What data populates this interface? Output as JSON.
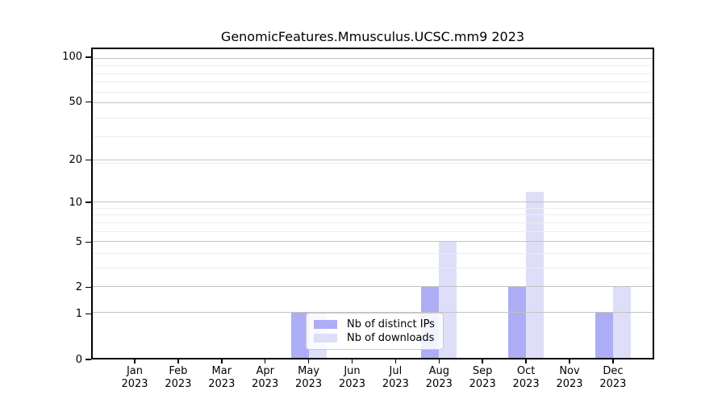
{
  "chart_data": {
    "type": "bar",
    "title": "GenomicFeatures.Mmusculus.UCSC.mm9 2023",
    "categories": [
      "Jan",
      "Feb",
      "Mar",
      "Apr",
      "May",
      "Jun",
      "Jul",
      "Aug",
      "Sep",
      "Oct",
      "Nov",
      "Dec"
    ],
    "year_label": "2023",
    "series": [
      {
        "name": "Nb of distinct IPs",
        "color": "#adadf5",
        "values": [
          0,
          0,
          0,
          0,
          1,
          0,
          0,
          2,
          0,
          2,
          0,
          1
        ]
      },
      {
        "name": "Nb of downloads",
        "color": "#dedef8",
        "values": [
          0,
          0,
          0,
          0,
          1,
          0,
          0,
          5,
          0,
          12,
          0,
          2
        ]
      }
    ],
    "xlabel": "",
    "ylabel": "",
    "y_axis": {
      "scale": "log10(value+1)",
      "major_ticks": [
        0,
        1,
        2,
        5,
        10,
        20,
        50,
        100
      ],
      "minor_gridline_values": [
        3,
        4,
        6,
        7,
        8,
        9,
        19,
        29,
        39,
        59,
        69,
        79,
        89
      ],
      "top_value": 116
    },
    "grid": "on",
    "legend_position": "lower center"
  },
  "colors": {
    "background": "#ffffff",
    "axis": "#000000",
    "major_grid": "#c2c2c2",
    "minor_grid": "#ededed",
    "tick_text": "#000000",
    "legend_border": "#cccccc"
  }
}
